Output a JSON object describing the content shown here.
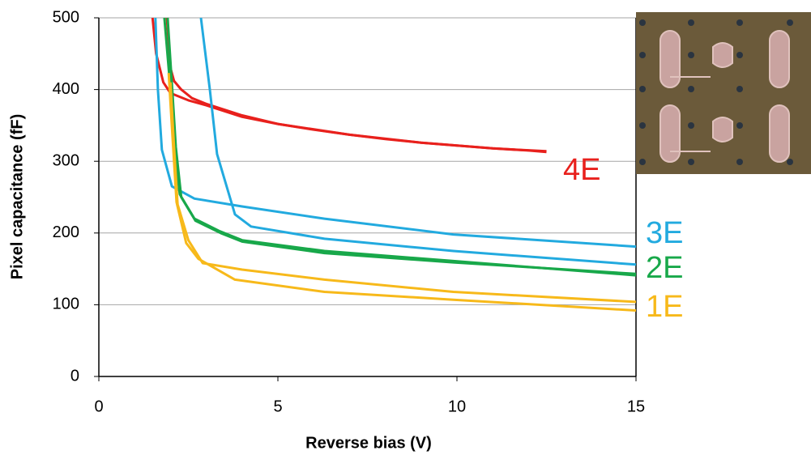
{
  "chart_data": {
    "type": "line",
    "xlabel": "Reverse bias (V)",
    "ylabel": "Pixel capacitance (fF)",
    "xlim": [
      0,
      15
    ],
    "ylim": [
      0,
      500
    ],
    "xticks": [
      0,
      5,
      10,
      15
    ],
    "yticks": [
      0,
      100,
      200,
      300,
      400,
      500
    ],
    "grid": true,
    "series": [
      {
        "name": "4E",
        "color": "#e8201c",
        "lines": [
          {
            "x": [
              1.5,
              1.6,
              1.8,
              2.0,
              2.5,
              3,
              4,
              5,
              6,
              7,
              8,
              9,
              10,
              11,
              12,
              12.5
            ],
            "values": [
              500,
              450,
              410,
              395,
              385,
              378,
              362,
              352,
              344,
              337,
              331,
              326,
              322,
              318,
              315,
              313
            ]
          },
          {
            "x": [
              1.9,
              2.0,
              2.1,
              2.3,
              2.6,
              3,
              4,
              5,
              7,
              9,
              11,
              12.5
            ],
            "values": [
              500,
              430,
              412,
              400,
              388,
              380,
              364,
              352,
              337,
              326,
              318,
              314
            ]
          }
        ]
      },
      {
        "name": "3E",
        "color": "#22aadf",
        "lines": [
          {
            "x": [
              1.58,
              1.65,
              1.76,
              2.04,
              2.67,
              4.0,
              6.3,
              9.9,
              15
            ],
            "values": [
              500,
              400,
              316,
              265,
              248,
              237,
              220,
              198,
              181
            ]
          },
          {
            "x": [
              2.85,
              3.1,
              3.3,
              3.8,
              4.25,
              6.3,
              9.9,
              15
            ],
            "values": [
              500,
              400,
              310,
              226,
              209,
              192,
              175,
              156
            ]
          }
        ]
      },
      {
        "name": "2E",
        "color": "#18a84a",
        "lines": [
          {
            "x": [
              1.83,
              2.0,
              2.1,
              2.26,
              2.67,
              3.35,
              4.0,
              6.3,
              9.9,
              15
            ],
            "values": [
              500,
              400,
              320,
              254,
              220,
              203,
              190,
              175,
              161,
              141
            ]
          },
          {
            "x": [
              1.92,
              2.05,
              2.15,
              2.3,
              2.7,
              3.4,
              4.0,
              6.3,
              9.9,
              15
            ],
            "values": [
              500,
              400,
              320,
              250,
              217,
              200,
              188,
              172,
              159,
              143
            ]
          }
        ]
      },
      {
        "name": "1E",
        "color": "#f7b91a",
        "lines": [
          {
            "x": [
              1.95,
              2.05,
              2.17,
              2.44,
              2.78,
              3.8,
              6.3,
              9.9,
              15
            ],
            "values": [
              423,
              340,
              243,
              186,
              164,
              135,
              118,
              107,
              92
            ]
          },
          {
            "x": [
              2.0,
              2.1,
              2.2,
              2.5,
              2.9,
              4.0,
              6.3,
              9.9,
              15
            ],
            "values": [
              410,
              320,
              240,
              190,
              158,
              149,
              135,
              118,
              104
            ]
          }
        ]
      }
    ]
  }
}
